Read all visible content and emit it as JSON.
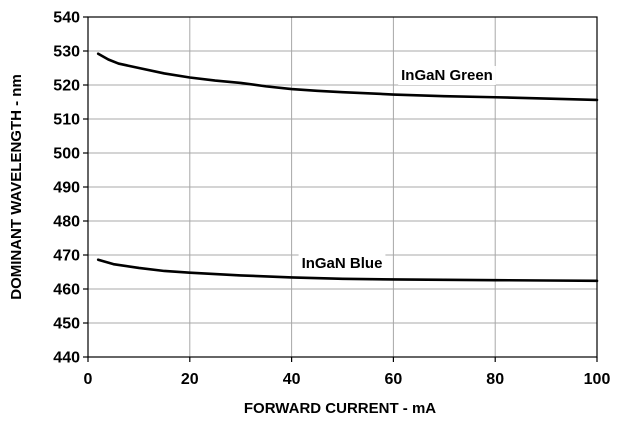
{
  "chart_data": {
    "type": "line",
    "xlabel": "FORWARD CURRENT - mA",
    "ylabel": "DOMINANT WAVELENGTH - nm",
    "xlim": [
      0,
      100
    ],
    "ylim": [
      440,
      540
    ],
    "xticks": [
      0,
      20,
      40,
      60,
      80,
      100
    ],
    "yticks": [
      440,
      450,
      460,
      470,
      480,
      490,
      500,
      510,
      520,
      530,
      540
    ],
    "grid": true,
    "series": [
      {
        "name": "InGaN Green",
        "x": [
          2,
          4,
          6,
          10,
          15,
          20,
          25,
          30,
          35,
          40,
          45,
          50,
          60,
          70,
          80,
          90,
          100
        ],
        "y": [
          529.2,
          527.5,
          526.3,
          525.0,
          523.4,
          522.2,
          521.3,
          520.6,
          519.6,
          518.8,
          518.3,
          517.9,
          517.2,
          516.7,
          516.4,
          516.0,
          515.6
        ]
      },
      {
        "name": "InGaN Blue",
        "x": [
          2,
          5,
          10,
          15,
          20,
          30,
          40,
          50,
          60,
          70,
          80,
          90,
          100
        ],
        "y": [
          468.6,
          467.3,
          466.2,
          465.3,
          464.8,
          464.0,
          463.4,
          463.0,
          462.8,
          462.7,
          462.6,
          462.5,
          462.4
        ]
      }
    ]
  }
}
